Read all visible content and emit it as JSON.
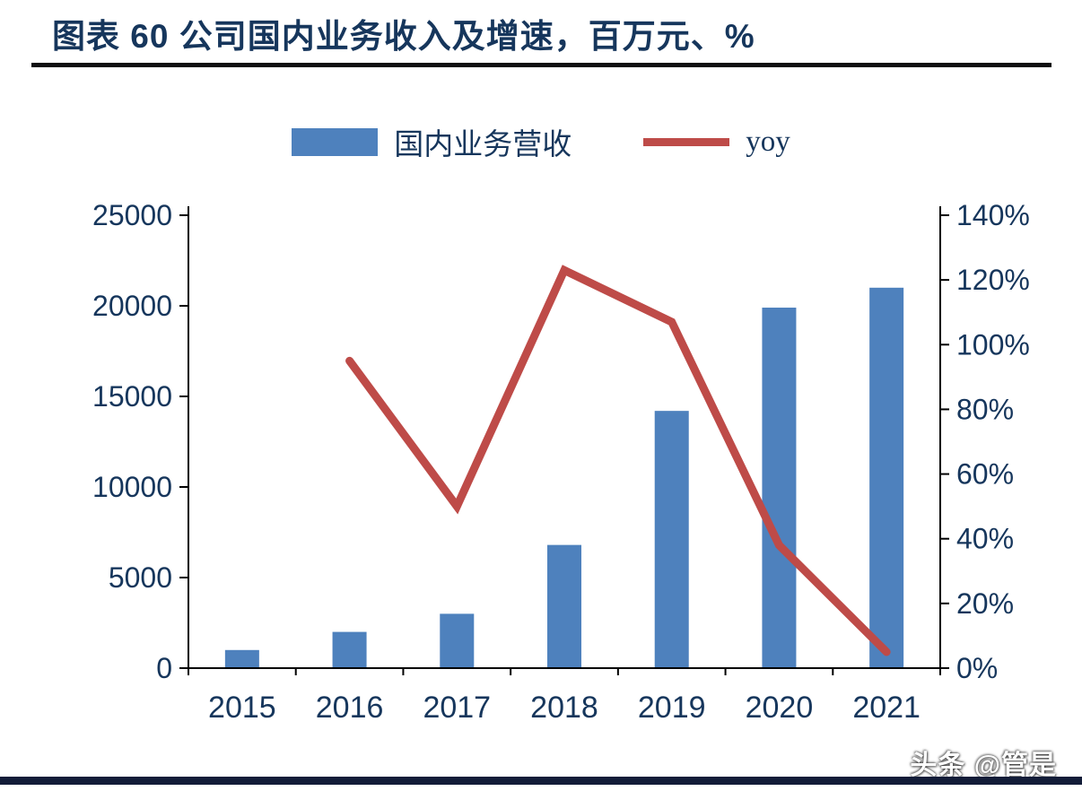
{
  "header": {
    "title": "图表 60 公司国内业务收入及增速，百万元、%"
  },
  "legend": {
    "bar_label": "国内业务营收",
    "line_label": "yoy"
  },
  "watermark": "头条 @管是",
  "colors": {
    "bar": "#4e81bd",
    "line": "#be4b48",
    "text": "#16365c",
    "axis": "#000000"
  },
  "chart_data": {
    "type": "bar",
    "subtype": "bar+line combo, dual axis",
    "title": "图表 60 公司国内业务收入及增速，百万元、%",
    "categories": [
      "2015",
      "2016",
      "2017",
      "2018",
      "2019",
      "2020",
      "2021"
    ],
    "series": [
      {
        "name": "国内业务营收",
        "type": "bar",
        "axis": "left",
        "unit": "百万元",
        "values": [
          1000,
          2000,
          3000,
          6800,
          14200,
          19900,
          21000
        ]
      },
      {
        "name": "yoy",
        "type": "line",
        "axis": "right",
        "unit": "%",
        "values": [
          null,
          95,
          50,
          123,
          107,
          38,
          5
        ]
      }
    ],
    "left_axis": {
      "min": 0,
      "max": 25000,
      "ticks": [
        0,
        5000,
        10000,
        15000,
        20000,
        25000
      ]
    },
    "right_axis": {
      "min": 0,
      "max": 140,
      "ticks": [
        0,
        20,
        40,
        60,
        80,
        100,
        120,
        140
      ],
      "suffix": "%"
    },
    "xlabel": "",
    "ylabel_left": "百万元",
    "ylabel_right": "%",
    "grid": false,
    "legend_position": "top-center"
  }
}
